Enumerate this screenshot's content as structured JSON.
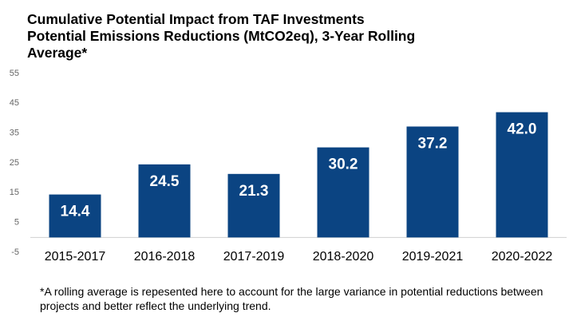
{
  "chart_data": {
    "type": "bar",
    "title": "Cumulative Potential Impact from TAF Investments",
    "subtitle": "Potential Emissions Reductions (MtCO2eq), 3-Year Rolling Average*",
    "categories": [
      "2015-2017",
      "2016-2018",
      "2017-2019",
      "2018-2020",
      "2019-2021",
      "2020-2022"
    ],
    "values": [
      14.4,
      24.5,
      21.3,
      30.2,
      37.2,
      42.0
    ],
    "value_labels": [
      "14.4",
      "24.5",
      "21.3",
      "30.2",
      "37.2",
      "42.0"
    ],
    "color": "#0b4482",
    "ylim": [
      -5,
      55
    ],
    "yticks": [
      -5,
      5,
      15,
      25,
      35,
      45,
      55
    ],
    "grid": false,
    "footnote": "*A rolling average is repesented here to account for the large variance in potential reductions between projects and better reflect the underlying trend."
  }
}
